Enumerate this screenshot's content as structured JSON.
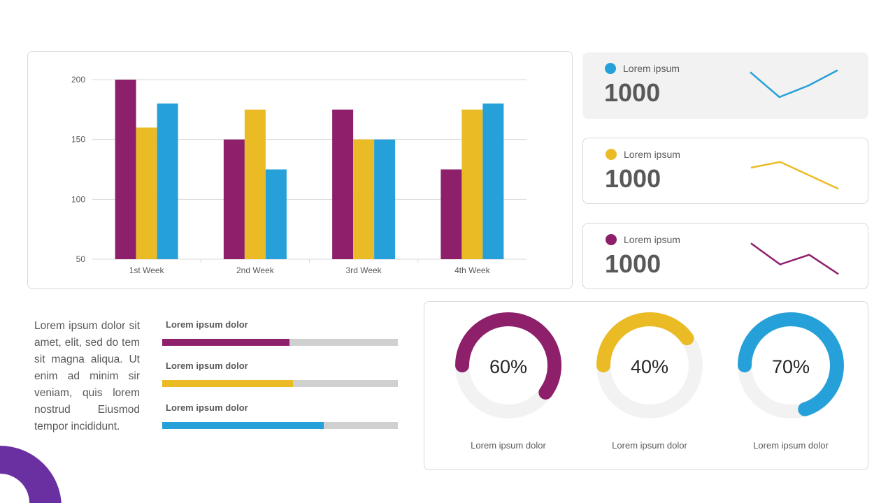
{
  "chart_data": {
    "type": "bar",
    "categories": [
      "1st Week",
      "2nd Week",
      "3rd Week",
      "4th Week"
    ],
    "series": [
      {
        "color": "#8e1f6b",
        "values": [
          200,
          150,
          175,
          125
        ]
      },
      {
        "color": "#ebbb26",
        "values": [
          160,
          175,
          150,
          175
        ]
      },
      {
        "color": "#26a0d8",
        "values": [
          180,
          125,
          150,
          180
        ]
      }
    ],
    "ylim": [
      50,
      200
    ],
    "yticks": [
      50,
      100,
      150,
      200
    ],
    "grid": true
  },
  "kpis": [
    {
      "label": "Lorem ipsum",
      "value": "1000",
      "color": "#26a0d8",
      "trend": [
        0.85,
        0.2,
        0.5,
        0.9
      ]
    },
    {
      "label": "Lorem ipsum",
      "value": "1000",
      "color": "#ebbb26",
      "trend": [
        0.6,
        0.75,
        0.4,
        0.05
      ]
    },
    {
      "label": "Lorem ipsum",
      "value": "1000",
      "color": "#8e1f6b",
      "trend": [
        0.85,
        0.3,
        0.55,
        0.05
      ]
    }
  ],
  "body_text": "Lorem ipsum dolor sit amet, elit, sed do tem sit magna aliqua. Ut enim ad minim sir veniam, quis lorem nostrud Eiusmod tempor incididunt.",
  "progress": [
    {
      "label": "Lorem ipsum dolor",
      "value": 0.54,
      "color": "#8e1f6b"
    },
    {
      "label": "Lorem ipsum dolor",
      "value": 0.555,
      "color": "#ebbb26"
    },
    {
      "label": "Lorem ipsum dolor",
      "value": 0.685,
      "color": "#26a0d8"
    }
  ],
  "donuts": [
    {
      "percent": "60%",
      "value": 60,
      "label": "Lorem ipsum dolor",
      "color": "#8e1f6b"
    },
    {
      "percent": "40%",
      "value": 40,
      "label": "Lorem ipsum dolor",
      "color": "#ebbb26"
    },
    {
      "percent": "70%",
      "value": 70,
      "label": "Lorem ipsum dolor",
      "color": "#26a0d8"
    }
  ],
  "decor_color": "#6a2fa0"
}
